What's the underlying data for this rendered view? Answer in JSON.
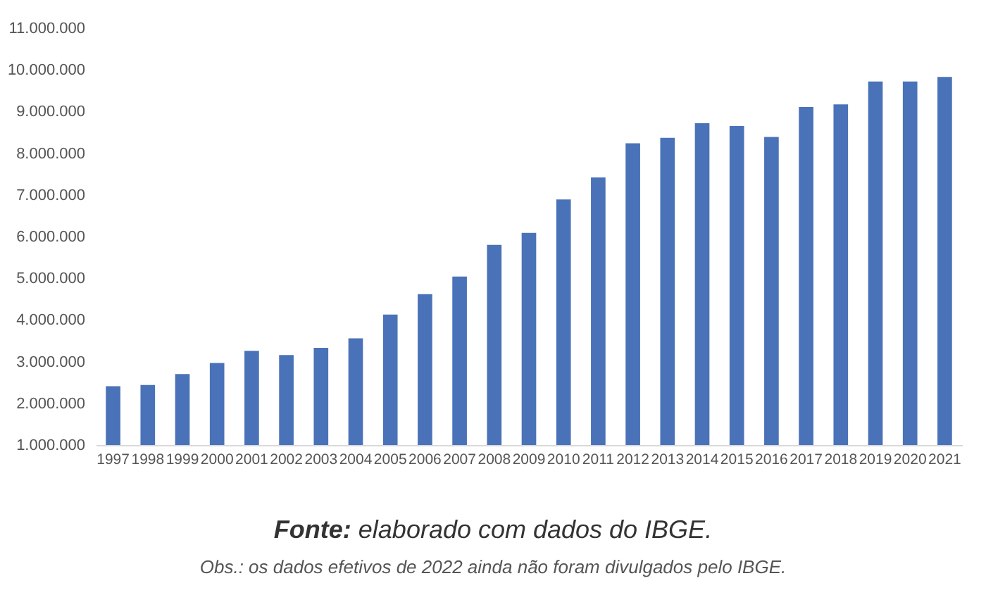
{
  "chart_data": {
    "type": "bar",
    "categories": [
      "1997",
      "1998",
      "1999",
      "2000",
      "2001",
      "2002",
      "2003",
      "2004",
      "2005",
      "2006",
      "2007",
      "2008",
      "2009",
      "2010",
      "2011",
      "2012",
      "2013",
      "2014",
      "2015",
      "2016",
      "2017",
      "2018",
      "2019",
      "2020",
      "2021"
    ],
    "values": [
      2410000,
      2440000,
      2700000,
      2970000,
      3260000,
      3160000,
      3330000,
      3560000,
      4130000,
      4620000,
      5040000,
      5800000,
      6090000,
      6890000,
      7420000,
      8240000,
      8370000,
      8720000,
      8650000,
      8390000,
      9110000,
      9170000,
      9720000,
      9720000,
      9830000
    ],
    "color": "#4a72b8",
    "ylim": [
      1000000,
      11000000
    ],
    "yticks": [
      {
        "value": 1000000,
        "label": "1.000.000"
      },
      {
        "value": 2000000,
        "label": "2.000.000"
      },
      {
        "value": 3000000,
        "label": "3.000.000"
      },
      {
        "value": 4000000,
        "label": "4.000.000"
      },
      {
        "value": 5000000,
        "label": "5.000.000"
      },
      {
        "value": 6000000,
        "label": "6.000.000"
      },
      {
        "value": 7000000,
        "label": "7.000.000"
      },
      {
        "value": 8000000,
        "label": "8.000.000"
      },
      {
        "value": 9000000,
        "label": "9.000.000"
      },
      {
        "value": 10000000,
        "label": "10.000.000"
      },
      {
        "value": 11000000,
        "label": "11.000.000"
      }
    ],
    "grid": false,
    "annotations": [
      "Fonte: elaborado com dados do IBGE.",
      "Obs.: os dados efetivos de 2022 ainda não foram divulgados pelo IBGE."
    ]
  }
}
